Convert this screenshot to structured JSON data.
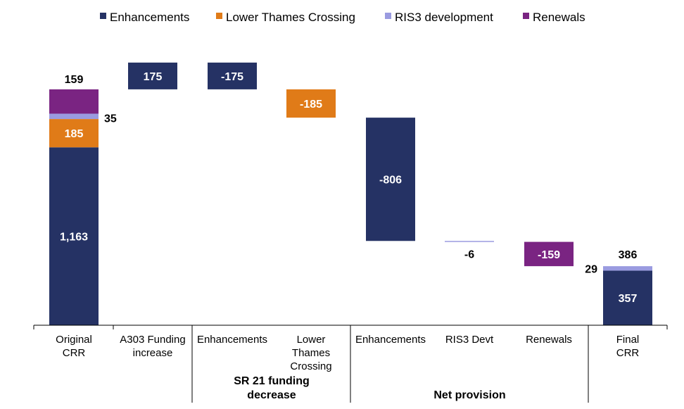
{
  "chart_data": {
    "type": "bar",
    "subtype": "waterfall",
    "title": "",
    "xlabel": "",
    "ylabel": "",
    "ylim": [
      0,
      1560
    ],
    "grid": false,
    "legend_position": "top",
    "colors": {
      "Enhancements": "#253264",
      "Lower Thames Crossing": "#E07B18",
      "RIS3 development": "#9A9BE0",
      "Renewals": "#7A2482"
    },
    "legend": [
      {
        "name": "Enhancements",
        "color": "#253264"
      },
      {
        "name": "Lower Thames Crossing",
        "color": "#E07B18"
      },
      {
        "name": "RIS3 development",
        "color": "#9A9BE0"
      },
      {
        "name": "Renewals",
        "color": "#7A2482"
      }
    ],
    "categories": [
      [
        "Original",
        "CRR"
      ],
      [
        "A303 Funding",
        "increase"
      ],
      [
        "Enhancements"
      ],
      [
        "Lower",
        "Thames",
        "Crossing"
      ],
      [
        "Enhancements"
      ],
      [
        "RIS3 Devt"
      ],
      [
        "Renewals"
      ],
      [
        "Final",
        "CRR"
      ]
    ],
    "groups": [
      {
        "label": [
          "SR 21 funding",
          "decrease"
        ],
        "from": 2,
        "to": 3
      },
      {
        "label": [
          "Net provision"
        ],
        "from": 4,
        "to": 6
      }
    ],
    "bars": [
      {
        "category": 0,
        "series": "Enhancements",
        "bottom": 0,
        "top": 1163,
        "label": "1,163",
        "label_pos": "inside"
      },
      {
        "category": 0,
        "series": "Lower Thames Crossing",
        "bottom": 1163,
        "top": 1348,
        "label": "185",
        "label_pos": "inside"
      },
      {
        "category": 0,
        "series": "RIS3 development",
        "bottom": 1348,
        "top": 1383,
        "label": "35",
        "label_pos": "right"
      },
      {
        "category": 0,
        "series": "Renewals",
        "bottom": 1383,
        "top": 1542,
        "label": "159",
        "label_pos": "above"
      },
      {
        "category": 1,
        "series": "Enhancements",
        "bottom": 1542,
        "top": 1717,
        "label": "175",
        "label_pos": "inside"
      },
      {
        "category": 2,
        "series": "Enhancements",
        "bottom": 1542,
        "top": 1717,
        "label": "-175",
        "label_pos": "inside"
      },
      {
        "category": 3,
        "series": "Lower Thames Crossing",
        "bottom": 1357,
        "top": 1542,
        "label": "-185",
        "label_pos": "inside"
      },
      {
        "category": 4,
        "series": "Enhancements",
        "bottom": 551,
        "top": 1357,
        "label": "-806",
        "label_pos": "inside"
      },
      {
        "category": 5,
        "series": "RIS3 development",
        "bottom": 545,
        "top": 551,
        "label": "-6",
        "label_pos": "below"
      },
      {
        "category": 6,
        "series": "Renewals",
        "bottom": 386,
        "top": 545,
        "label": "-159",
        "label_pos": "inside"
      },
      {
        "category": 7,
        "series": "Enhancements",
        "bottom": 0,
        "top": 357,
        "label": "357",
        "label_pos": "inside"
      },
      {
        "category": 7,
        "series": "RIS3 development",
        "bottom": 357,
        "top": 386,
        "label": "29",
        "label_pos": "left"
      }
    ],
    "totals": [
      {
        "category": 7,
        "value": 386,
        "label": "386"
      }
    ]
  }
}
